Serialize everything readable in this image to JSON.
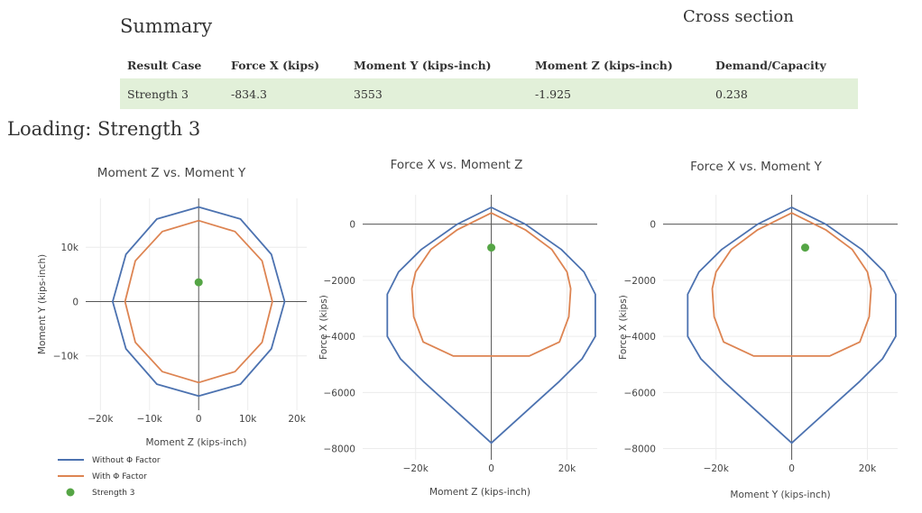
{
  "summary": {
    "heading": "Summary",
    "cross_section_heading": "Cross section",
    "columns": [
      "Result Case",
      "Force X (kips)",
      "Moment Y (kips-inch)",
      "Moment Z (kips-inch)",
      "Demand/Capacity"
    ],
    "row": [
      "Strength 3",
      "-834.3",
      "3553",
      "-1.925",
      "0.238"
    ]
  },
  "loading_heading": "Loading: Strength 3",
  "colors": {
    "without": "#4c72b0",
    "with": "#dd8452",
    "point": "#55a545",
    "row_bg": "#e2f0d9"
  },
  "legend": [
    "Without Φ Factor",
    "With Φ Factor",
    "Strength 3"
  ],
  "chart_data": [
    {
      "type": "line",
      "title": "Moment Z vs. Moment Y",
      "xlabel": "Moment Z (kips-inch)",
      "ylabel": "Moment Y (kips-inch)",
      "xlim": [
        -23000,
        22000
      ],
      "ylim": [
        -20000,
        19000
      ],
      "xticks": [
        -20000,
        -10000,
        0,
        10000,
        20000
      ],
      "xticklabels": [
        "−20k",
        "−10k",
        "0",
        "10k",
        "20k"
      ],
      "yticks": [
        -10000,
        0,
        10000
      ],
      "yticklabels": [
        "−10k",
        "0",
        "10k"
      ],
      "series": [
        {
          "name": "Without Φ Factor",
          "x": [
            0,
            8500,
            14800,
            17500,
            14800,
            8500,
            0,
            -8500,
            -14800,
            -17500,
            -14800,
            -8500,
            0
          ],
          "y": [
            17400,
            15200,
            8700,
            0,
            -8700,
            -15200,
            -17400,
            -15200,
            -8700,
            0,
            8700,
            15200,
            17400
          ]
        },
        {
          "name": "With Φ Factor",
          "x": [
            0,
            7400,
            12900,
            15000,
            12900,
            7400,
            0,
            -7400,
            -12900,
            -15000,
            -12900,
            -7400,
            0
          ],
          "y": [
            14900,
            12900,
            7500,
            0,
            -7500,
            -12900,
            -14900,
            -12900,
            -7500,
            0,
            7500,
            12900,
            14900
          ]
        },
        {
          "name": "Strength 3",
          "x": [
            -1.925
          ],
          "y": [
            3553
          ]
        }
      ]
    },
    {
      "type": "line",
      "title": "Force X vs. Moment Z",
      "xlabel": "Moment Z (kips-inch)",
      "ylabel": "Force X (kips)",
      "xlim": [
        -34000,
        28000
      ],
      "ylim": [
        -8400,
        1050
      ],
      "xticks": [
        -20000,
        0,
        20000
      ],
      "xticklabels": [
        "−20k",
        "0",
        "20k"
      ],
      "yticks": [
        -8000,
        -6000,
        -4000,
        -2000,
        0
      ],
      "yticklabels": [
        "−8000",
        "−6000",
        "−4000",
        "−2000",
        "0"
      ],
      "series": [
        {
          "name": "Without Φ Factor",
          "x": [
            0,
            -9000,
            -18500,
            -24500,
            -27500,
            -27500,
            -24000,
            -18000,
            0,
            18000,
            24000,
            27500,
            27500,
            24500,
            18500,
            9000,
            0
          ],
          "y": [
            600,
            0,
            -900,
            -1700,
            -2500,
            -4000,
            -4800,
            -5600,
            -7800,
            -5600,
            -4800,
            -4000,
            -2500,
            -1700,
            -900,
            0,
            600
          ]
        },
        {
          "name": "With Φ Factor",
          "x": [
            0,
            -9000,
            -16000,
            -20000,
            -21000,
            -20500,
            -18000,
            -10000,
            10000,
            18000,
            20500,
            21000,
            20000,
            16000,
            9000,
            0
          ],
          "y": [
            400,
            -200,
            -900,
            -1700,
            -2300,
            -3300,
            -4200,
            -4700,
            -4700,
            -4200,
            -3300,
            -2300,
            -1700,
            -900,
            -200,
            400
          ]
        },
        {
          "name": "Strength 3",
          "x": [
            -1.925
          ],
          "y": [
            -834.3
          ]
        }
      ]
    },
    {
      "type": "line",
      "title": "Force X vs. Moment Y",
      "xlabel": "Moment Y (kips-inch)",
      "ylabel": "Force X (kips)",
      "xlim": [
        -34000,
        28000
      ],
      "ylim": [
        -8400,
        1050
      ],
      "xticks": [
        -20000,
        0,
        20000
      ],
      "xticklabels": [
        "−20k",
        "0",
        "20k"
      ],
      "yticks": [
        -8000,
        -6000,
        -4000,
        -2000,
        0
      ],
      "yticklabels": [
        "−8000",
        "−6000",
        "−4000",
        "−2000",
        "0"
      ],
      "series": [
        {
          "name": "Without Φ Factor",
          "x": [
            0,
            -9000,
            -18500,
            -24500,
            -27500,
            -27500,
            -24000,
            -18000,
            0,
            18000,
            24000,
            27500,
            27500,
            24500,
            18500,
            9000,
            0
          ],
          "y": [
            600,
            0,
            -900,
            -1700,
            -2500,
            -4000,
            -4800,
            -5600,
            -7800,
            -5600,
            -4800,
            -4000,
            -2500,
            -1700,
            -900,
            0,
            600
          ]
        },
        {
          "name": "With Φ Factor",
          "x": [
            0,
            -9000,
            -16000,
            -20000,
            -21000,
            -20500,
            -18000,
            -10000,
            10000,
            18000,
            20500,
            21000,
            20000,
            16000,
            9000,
            0
          ],
          "y": [
            400,
            -200,
            -900,
            -1700,
            -2300,
            -3300,
            -4200,
            -4700,
            -4700,
            -4200,
            -3300,
            -2300,
            -1700,
            -900,
            -200,
            400
          ]
        },
        {
          "name": "Strength 3",
          "x": [
            3553
          ],
          "y": [
            -834.3
          ]
        }
      ]
    }
  ]
}
